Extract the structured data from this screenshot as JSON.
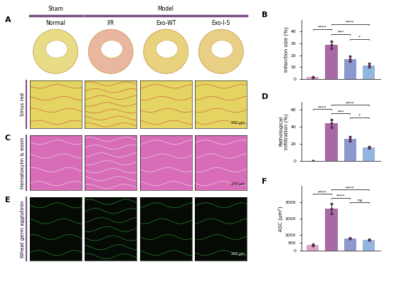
{
  "figure": {
    "headers": [
      "Sham",
      "Model"
    ],
    "panel_labels": [
      "A",
      "C",
      "E"
    ],
    "groups": [
      "Normal",
      "I/R",
      "Exo-WT",
      "Exo-I-S"
    ],
    "stains": [
      "Sirius red",
      "Hematoxylin & eosin",
      "Wheat germ agglutinin"
    ],
    "scale_bar": "200 μm"
  },
  "chart_data": [
    {
      "type": "bar",
      "title": "B",
      "ylabel": "Infarction size (%)",
      "categories": [
        null,
        null,
        null,
        null
      ],
      "values": [
        1.5,
        29,
        17,
        11.5
      ],
      "errors": [
        0.5,
        2.5,
        2,
        1.5
      ],
      "points": [
        [
          1,
          1.5,
          2
        ],
        [
          26,
          29,
          32
        ],
        [
          15,
          17,
          19
        ],
        [
          10,
          11.5,
          13
        ]
      ],
      "colors": [
        "#dba3cc",
        "#a86aa6",
        "#8e98d0",
        "#93b6de"
      ],
      "ylim": [
        0,
        50
      ],
      "yticks": [
        0,
        10,
        20,
        30,
        40
      ],
      "tick_labels": "y",
      "significance": [
        {
          "from": 2,
          "to": 3,
          "label": "*"
        },
        {
          "from": 1,
          "to": 2,
          "label": "***"
        },
        {
          "from": 0,
          "to": 1,
          "label": "****"
        },
        {
          "from": 1,
          "to": 3,
          "label": "****"
        }
      ]
    },
    {
      "type": "bar",
      "title": "D",
      "ylabel": "Pathological\ninfiltration (%)",
      "categories": [
        null,
        null,
        null,
        null
      ],
      "values": [
        0,
        44,
        26,
        16
      ],
      "errors": [
        0,
        5,
        3,
        1.5
      ],
      "points": [
        [
          0,
          0,
          0
        ],
        [
          39,
          44,
          49
        ],
        [
          23,
          26,
          28
        ],
        [
          15,
          16,
          17
        ]
      ],
      "colors": [
        "#dba3cc",
        "#a86aa6",
        "#8e98d0",
        "#93b6de"
      ],
      "ylim": [
        0,
        70
      ],
      "yticks": [
        0,
        20,
        40,
        60
      ],
      "tick_labels": "y",
      "significance": [
        {
          "from": 2,
          "to": 3,
          "label": "*"
        },
        {
          "from": 1,
          "to": 2,
          "label": "***"
        },
        {
          "from": 0,
          "to": 1,
          "label": "****"
        },
        {
          "from": 1,
          "to": 3,
          "label": "****"
        }
      ]
    },
    {
      "type": "bar",
      "title": "F",
      "ylabel": "ASC (μm²)",
      "categories": [
        null,
        null,
        null,
        null
      ],
      "values": [
        380,
        2600,
        780,
        700
      ],
      "errors": [
        40,
        300,
        30,
        20
      ],
      "points": [
        [
          330,
          380,
          420
        ],
        [
          2300,
          2600,
          2900
        ],
        [
          750,
          780,
          810
        ],
        [
          680,
          700,
          720
        ]
      ],
      "colors": [
        "#dba3cc",
        "#a86aa6",
        "#8e98d0",
        "#93b6de"
      ],
      "ylim": [
        0,
        4000
      ],
      "yticks": [
        0,
        500,
        1000,
        2000,
        3000
      ],
      "tick_labels": "y",
      "significance": [
        {
          "from": 2,
          "to": 3,
          "label": "ns"
        },
        {
          "from": 1,
          "to": 2,
          "label": "****"
        },
        {
          "from": 0,
          "to": 1,
          "label": "****"
        },
        {
          "from": 1,
          "to": 3,
          "label": "****"
        }
      ]
    }
  ]
}
